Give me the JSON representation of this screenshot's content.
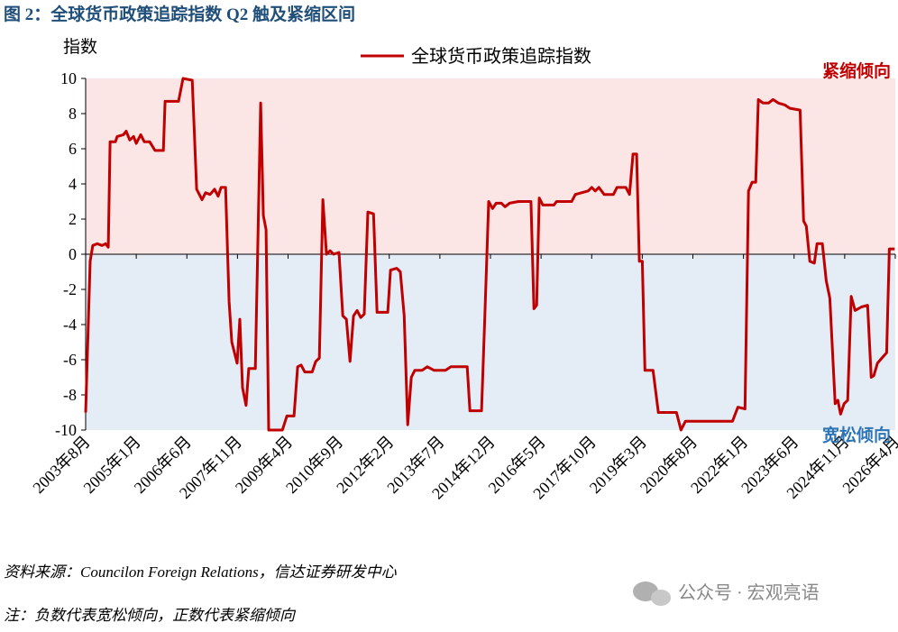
{
  "chart_data": {
    "type": "line",
    "title": "图 2：全球货币政策追踪指数 Q2 触及紧缩区间",
    "y_label": "指数",
    "annotations": [
      "紧缩倾向",
      "宽松倾向"
    ],
    "source": "资料来源：Councilon Foreign Relations，信达证券研发中心",
    "note": "注：负数代表宽松倾向，正数代表紧缩倾向",
    "watermark": "公众号 · 宏观亮语",
    "xlim": [
      0,
      272
    ],
    "xticks": [
      {
        "value": 0,
        "label": "2003年8月"
      },
      {
        "value": 17,
        "label": "2005年1月"
      },
      {
        "value": 34,
        "label": "2006年6月"
      },
      {
        "value": 51,
        "label": "2007年11月"
      },
      {
        "value": 68,
        "label": "2009年4月"
      },
      {
        "value": 85,
        "label": "2010年9月"
      },
      {
        "value": 102,
        "label": "2012年2月"
      },
      {
        "value": 119,
        "label": "2013年7月"
      },
      {
        "value": 136,
        "label": "2014年12月"
      },
      {
        "value": 153,
        "label": "2016年5月"
      },
      {
        "value": 170,
        "label": "2017年10月"
      },
      {
        "value": 187,
        "label": "2019年3月"
      },
      {
        "value": 204,
        "label": "2020年8月"
      },
      {
        "value": 221,
        "label": "2022年1月"
      },
      {
        "value": 238,
        "label": "2023年6月"
      },
      {
        "value": 255,
        "label": "2024年11月"
      },
      {
        "value": 272,
        "label": "2026年4月"
      }
    ],
    "ylim": [
      -10,
      10
    ],
    "yticks": [
      -10,
      -8,
      -6,
      -4,
      -2,
      0,
      2,
      4,
      6,
      8,
      10
    ],
    "x": [
      0,
      1.5,
      2.4,
      3.9,
      5.5,
      6.7,
      7.6,
      8.2,
      10.0,
      10.6,
      12.7,
      13.6,
      14.8,
      16.1,
      17.0,
      18.5,
      19.7,
      21.5,
      23.3,
      26.1,
      26.7,
      31.2,
      32.7,
      35.8,
      37.3,
      39.1,
      40.3,
      41.8,
      43.3,
      44.5,
      45.5,
      47.0,
      48.2,
      49.1,
      50.9,
      51.8,
      52.7,
      53.9,
      54.8,
      57.0,
      58.8,
      59.7,
      60.6,
      61.5,
      66.1,
      67.6,
      70.0,
      71.2,
      72.4,
      73.6,
      76.1,
      77.3,
      78.5,
      79.7,
      80.9,
      82.1,
      83.3,
      85.1,
      86.4,
      87.6,
      88.8,
      90.0,
      91.2,
      92.4,
      93.6,
      94.8,
      96.7,
      97.9,
      101.5,
      102.4,
      104.5,
      105.7,
      107.0,
      108.2,
      109.4,
      110.6,
      113.0,
      114.8,
      117.0,
      120.9,
      122.7,
      128.2,
      129.1,
      133.0,
      134.2,
      135.4,
      136.7,
      137.9,
      139.7,
      140.9,
      142.4,
      145.4,
      149.6,
      150.6,
      151.5,
      152.4,
      153.6,
      157.3,
      158.2,
      163.3,
      164.5,
      168.8,
      170.0,
      171.2,
      172.4,
      174.2,
      177.3,
      178.5,
      181.5,
      182.7,
      183.9,
      185.1,
      186.0,
      187.0,
      187.9,
      190.6,
      192.4,
      198.5,
      200.0,
      201.5,
      203.3,
      217.3,
      219.1,
      221.5,
      222.7,
      223.9,
      225.1,
      226.0,
      227.6,
      229.4,
      230.9,
      232.7,
      234.8,
      236.6,
      240.0,
      241.2,
      242.1,
      243.3,
      244.8,
      245.7,
      247.5,
      248.8,
      250.0,
      251.8,
      252.7,
      253.6,
      254.8,
      256.0,
      257.2,
      258.5,
      260.6,
      262.7,
      263.9,
      264.8,
      266.0,
      267.5,
      269.1,
      270.0,
      271.8
    ],
    "series": [
      {
        "name": "全球货币政策追踪指数",
        "color": "#c00000",
        "values": [
          -9.0,
          -0.4,
          0.5,
          0.6,
          0.5,
          0.6,
          0.4,
          6.4,
          6.4,
          6.7,
          6.8,
          7.0,
          6.5,
          6.7,
          6.3,
          6.8,
          6.4,
          6.4,
          5.9,
          5.9,
          8.7,
          8.7,
          10,
          9.9,
          3.7,
          3.1,
          3.5,
          3.4,
          3.7,
          3.3,
          3.8,
          3.8,
          -2.7,
          -5.0,
          -6.2,
          -3.7,
          -7.6,
          -8.6,
          -6.5,
          -6.5,
          8.6,
          2.2,
          1.4,
          -10,
          -10,
          -9.2,
          -9.2,
          -6.4,
          -6.3,
          -6.7,
          -6.7,
          -6.1,
          -5.9,
          3.1,
          0,
          0.2,
          0,
          0.1,
          -3.5,
          -3.7,
          -6.1,
          -3.5,
          -3.2,
          -3.6,
          -3.4,
          2.4,
          2.3,
          -3.3,
          -3.3,
          -0.9,
          -0.8,
          -1.0,
          -3.5,
          -9.7,
          -7.0,
          -6.6,
          -6.6,
          -6.4,
          -6.6,
          -6.6,
          -6.4,
          -6.4,
          -8.9,
          -8.9,
          -3.0,
          3.0,
          2.6,
          2.9,
          2.9,
          2.7,
          2.9,
          3.0,
          3.0,
          -3.1,
          -2.9,
          3.2,
          2.8,
          2.8,
          3.0,
          3.0,
          3.4,
          3.6,
          3.8,
          3.6,
          3.8,
          3.4,
          3.4,
          3.8,
          3.8,
          3.4,
          5.7,
          5.7,
          -0.4,
          -0.4,
          -6.6,
          -6.6,
          -9.0,
          -9.0,
          -10,
          -9.5,
          -9.5,
          -9.5,
          -8.7,
          -8.8,
          3.6,
          4.1,
          4.1,
          8.8,
          8.6,
          8.6,
          8.8,
          8.6,
          8.5,
          8.3,
          8.2,
          1.9,
          1.6,
          -0.4,
          -0.5,
          0.6,
          0.6,
          -1.5,
          -2.5,
          -8.5,
          -8.3,
          -9.1,
          -8.5,
          -8.3,
          -2.4,
          -3.2,
          -3.0,
          -2.9,
          -7.0,
          -6.9,
          -6.2,
          -5.9,
          -5.6,
          0.3,
          0.3
        ]
      }
    ],
    "annotation_colors": [
      "#c00000",
      "#2e75b6"
    ],
    "band_colors": [
      "#fbe5e5",
      "#e4ecf6"
    ]
  }
}
